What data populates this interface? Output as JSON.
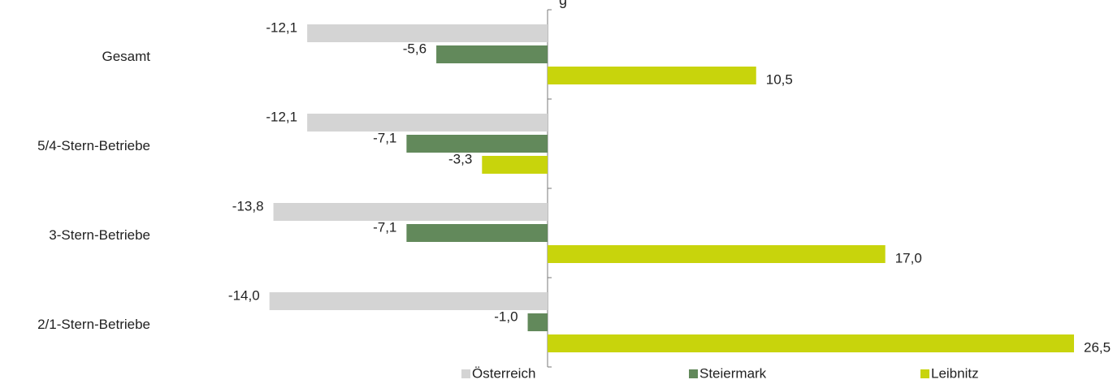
{
  "chart_data": {
    "type": "bar",
    "orientation": "horizontal",
    "title": "",
    "title_fragment": "g",
    "categories": [
      "Gesamt",
      "5/4-Stern-Betriebe",
      "3-Stern-Betriebe",
      "2/1-Stern-Betriebe"
    ],
    "series": [
      {
        "name": "Österreich",
        "color": "#d4d4d4",
        "values": [
          -12.1,
          -12.1,
          -13.8,
          -14.0
        ],
        "labels": [
          "-12,1",
          "-12,1",
          "-13,8",
          "-14,0"
        ]
      },
      {
        "name": "Steiermark",
        "color": "#62895b",
        "values": [
          -5.6,
          -7.1,
          -7.1,
          -1.0
        ],
        "labels": [
          "-5,6",
          "-7,1",
          "-7,1",
          "-1,0"
        ]
      },
      {
        "name": "Leibnitz",
        "color": "#c8d40c",
        "values": [
          10.5,
          -3.3,
          17.0,
          26.5
        ],
        "labels": [
          "10,5",
          "-3,3",
          "17,0",
          "26,5"
        ]
      }
    ],
    "xlim": [
      -16,
      26.5
    ],
    "grid": false,
    "legend_position": "bottom"
  }
}
